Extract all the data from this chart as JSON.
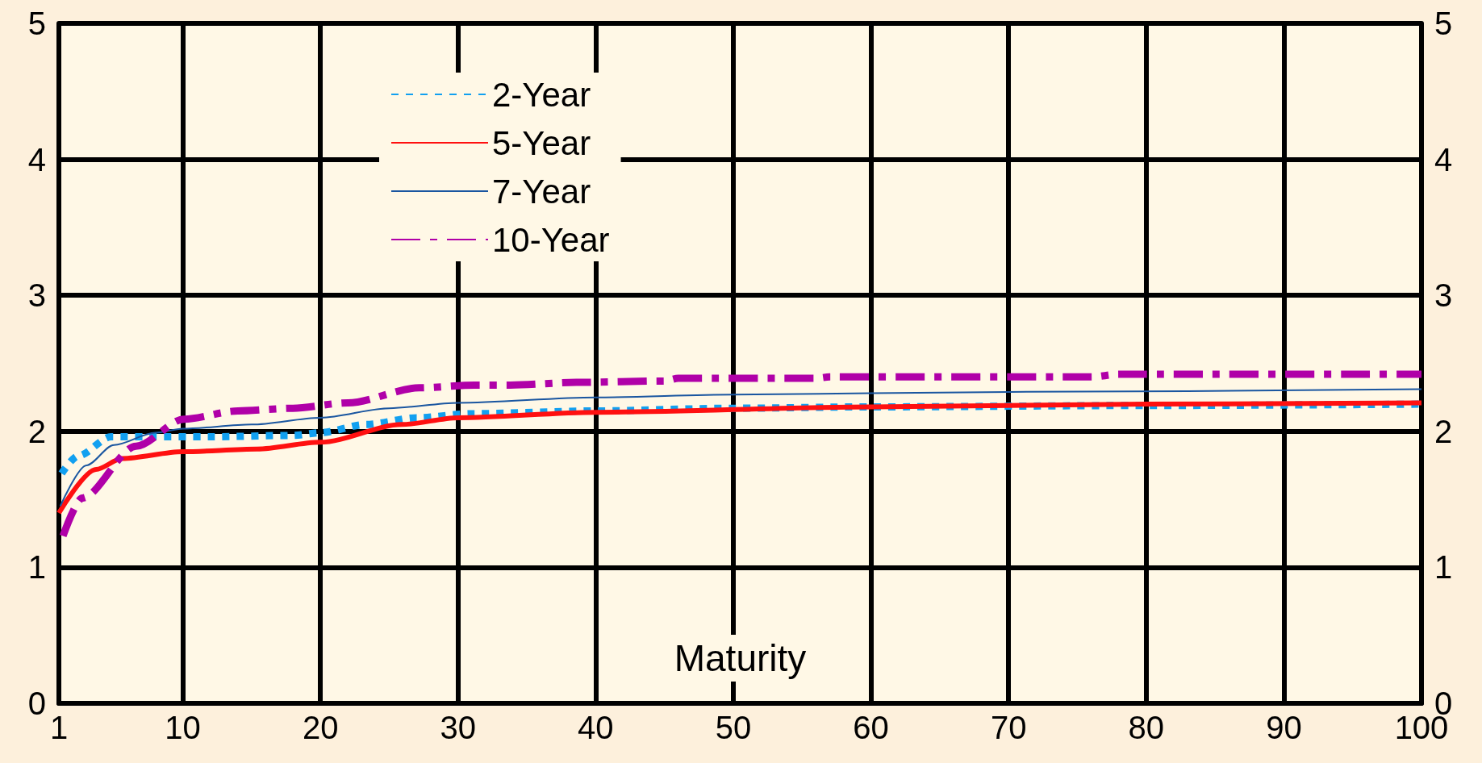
{
  "chart_data": {
    "type": "line",
    "xlabel": "Maturity",
    "xlim": [
      1,
      100
    ],
    "xticks": [
      1,
      10,
      20,
      30,
      40,
      50,
      60,
      70,
      80,
      90,
      100
    ],
    "ylim": [
      0,
      5
    ],
    "yticks": [
      0,
      1,
      2,
      3,
      4,
      5
    ],
    "y2lim": [
      0,
      5
    ],
    "y2ticks": [
      0,
      1,
      2,
      3,
      4,
      5
    ],
    "grid": true,
    "legend": "top",
    "marker": "none",
    "series": [
      {
        "name": "2-Year",
        "color": "#12a0f0",
        "line_style": "dotted",
        "x": [
          1.2,
          2.4,
          4.8,
          7.4,
          12,
          18,
          20,
          23.3,
          27,
          31,
          40,
          50,
          60,
          80,
          100
        ],
        "values": [
          1.69,
          1.82,
          1.96,
          1.96,
          1.96,
          1.97,
          1.99,
          2.05,
          2.1,
          2.13,
          2.15,
          2.17,
          2.18,
          2.19,
          2.2
        ]
      },
      {
        "name": "5-Year",
        "color": "#ff1010",
        "line_style": "solid",
        "x": [
          1,
          3.7,
          5.6,
          10,
          15.4,
          20,
          25.9,
          30,
          40,
          60,
          80,
          100
        ],
        "values": [
          1.4,
          1.72,
          1.8,
          1.85,
          1.87,
          1.92,
          2.05,
          2.1,
          2.14,
          2.18,
          2.2,
          2.21
        ]
      },
      {
        "name": "7-Year",
        "color": "#1a56a0",
        "line_style": "solid",
        "x": [
          1.1,
          3,
          5,
          8,
          10,
          15,
          20,
          25,
          30,
          40,
          50,
          70,
          100
        ],
        "values": [
          1.45,
          1.75,
          1.9,
          1.99,
          2.02,
          2.05,
          2.1,
          2.17,
          2.21,
          2.25,
          2.27,
          2.29,
          2.31
        ]
      },
      {
        "name": "10-Year",
        "color": "#b000a8",
        "line_style": "dashdot",
        "x": [
          1.3,
          2.7,
          6.6,
          10.1,
          14,
          18,
          22,
          27.2,
          31.2,
          33.8,
          38.6,
          45,
          46,
          56,
          57,
          76,
          78,
          100
        ],
        "values": [
          1.23,
          1.51,
          1.89,
          2.09,
          2.15,
          2.17,
          2.21,
          2.32,
          2.34,
          2.34,
          2.36,
          2.37,
          2.39,
          2.39,
          2.4,
          2.4,
          2.42,
          2.42
        ]
      }
    ]
  }
}
